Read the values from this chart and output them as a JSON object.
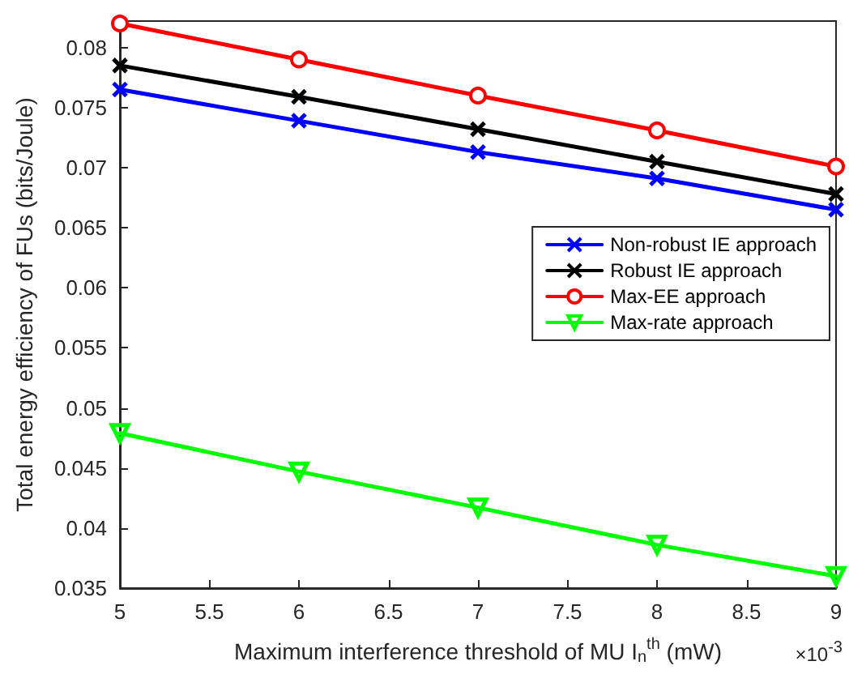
{
  "chart_data": {
    "type": "line",
    "xlabel": "Maximum interference threshold of MU I$_{n}$$^{th}$ (mW)",
    "ylabel": "Total energy efficiency of FUs (bits/Joule)",
    "annotations": [
      "×10$^{-3}$"
    ],
    "x": [
      5,
      6,
      7,
      8,
      9
    ],
    "series": [
      {
        "name": "Non-robust IE approach",
        "color": "#0000ff",
        "marker": "cross",
        "values": [
          0.0765,
          0.0739,
          0.0713,
          0.0691,
          0.0665
        ]
      },
      {
        "name": "Robust IE approach",
        "color": "#000000",
        "marker": "cross",
        "values": [
          0.0785,
          0.0759,
          0.0732,
          0.0705,
          0.0678
        ]
      },
      {
        "name": "Max-EE approach",
        "color": "#ff0000",
        "marker": "circle",
        "values": [
          0.082,
          0.079,
          0.076,
          0.0731,
          0.0701
        ]
      },
      {
        "name": "Max-rate approach",
        "color": "#00ff00",
        "marker": "triangle",
        "values": [
          0.0479,
          0.0447,
          0.0417,
          0.0386,
          0.036
        ]
      }
    ],
    "xlim": [
      5,
      9
    ],
    "xticks": [
      5,
      5.5,
      6,
      6.5,
      7,
      7.5,
      8,
      8.5,
      9
    ],
    "ylim": [
      0.035,
      0.0822
    ],
    "yticks": [
      0.035,
      0.04,
      0.045,
      0.05,
      0.055,
      0.06,
      0.065,
      0.07,
      0.075,
      0.08
    ],
    "grid": false,
    "legend": "right",
    "line_style": "solid"
  }
}
